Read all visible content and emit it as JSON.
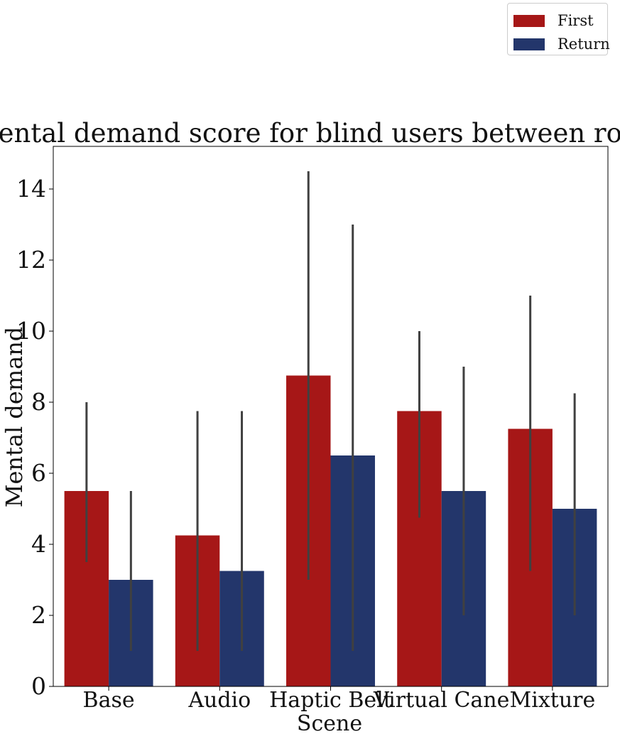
{
  "chart_data": {
    "type": "bar",
    "title": "Mental demand score for blind users between rounds",
    "xlabel": "Scene",
    "ylabel": "Mental demand",
    "categories": [
      "Base",
      "Audio",
      "Haptic Belt",
      "Virtual Cane",
      "Mixture"
    ],
    "series": [
      {
        "name": "First",
        "color": "#a61717",
        "values": [
          5.5,
          4.25,
          8.75,
          7.75,
          7.25
        ],
        "error_low": [
          3.5,
          1.0,
          3.0,
          4.75,
          3.25
        ],
        "error_high": [
          8.0,
          7.75,
          14.5,
          10.0,
          11.0
        ]
      },
      {
        "name": "Return",
        "color": "#23366b",
        "values": [
          3.0,
          3.25,
          6.5,
          5.5,
          5.0
        ],
        "error_low": [
          1.0,
          1.0,
          1.0,
          2.0,
          2.0
        ],
        "error_high": [
          5.5,
          7.75,
          13.0,
          9.0,
          8.25
        ]
      }
    ],
    "yticks": [
      0,
      2,
      4,
      6,
      8,
      10,
      12,
      14
    ],
    "ylim": [
      0,
      15.2
    ],
    "grid": false,
    "legend_position": "top-right, outside plot",
    "error_bar_color": "#404040"
  }
}
